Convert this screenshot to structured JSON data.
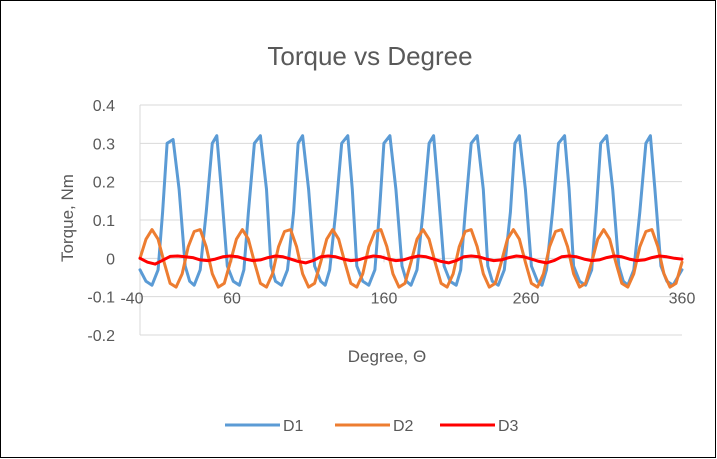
{
  "chart_data": {
    "type": "line",
    "title": "Torque vs Degree",
    "xlabel": "Degree, Θ",
    "ylabel": "Torque, Nm",
    "xlim": [
      -40,
      360
    ],
    "ylim": [
      -0.2,
      0.4
    ],
    "x_ticks": [
      -40,
      60,
      160,
      260,
      360
    ],
    "x_tick_labels": [
      "-40",
      "60",
      "160",
      "260",
      "360"
    ],
    "y_ticks": [
      -0.2,
      -0.1,
      0,
      0.1,
      0.2,
      0.3,
      0.4
    ],
    "y_tick_labels": [
      "-0.2",
      "-0.1",
      "0",
      "0.1",
      "0.2",
      "0.3",
      "0.4"
    ],
    "grid": "horizontal",
    "legend": "bottom",
    "series": [
      {
        "name": "D1",
        "color": "#5B9BD5",
        "x": [
          0,
          4,
          8,
          12,
          15,
          18,
          22,
          26,
          30,
          33,
          36,
          40,
          44,
          48,
          51,
          54,
          58,
          62,
          66,
          69,
          72,
          76,
          80,
          84,
          87,
          90,
          94,
          98,
          102,
          105,
          108,
          112,
          116,
          120,
          123,
          126,
          130,
          134,
          138,
          141,
          144,
          148,
          152,
          156,
          159,
          162,
          166,
          170,
          174,
          177,
          180,
          184,
          188,
          192,
          195,
          198,
          202,
          206,
          210,
          213,
          216,
          220,
          224,
          228,
          231,
          234,
          238,
          242,
          246,
          249,
          252,
          256,
          260,
          264,
          267,
          270,
          274,
          278,
          282,
          285,
          288,
          292,
          296,
          300,
          303,
          306,
          310,
          314,
          318,
          321,
          324,
          328,
          332,
          336,
          339,
          342,
          346,
          350,
          354,
          357,
          360
        ],
        "y": [
          -0.03,
          -0.06,
          -0.07,
          -0.03,
          0.12,
          0.3,
          0.31,
          0.18,
          -0.02,
          -0.06,
          -0.07,
          -0.03,
          0.12,
          0.3,
          0.32,
          0.18,
          -0.02,
          -0.06,
          -0.07,
          -0.03,
          0.12,
          0.3,
          0.32,
          0.18,
          -0.02,
          -0.06,
          -0.07,
          -0.03,
          0.12,
          0.3,
          0.32,
          0.18,
          -0.02,
          -0.06,
          -0.07,
          -0.03,
          0.12,
          0.3,
          0.32,
          0.18,
          -0.02,
          -0.06,
          -0.07,
          -0.03,
          0.12,
          0.3,
          0.32,
          0.18,
          -0.02,
          -0.06,
          -0.07,
          -0.03,
          0.12,
          0.3,
          0.32,
          0.18,
          -0.02,
          -0.06,
          -0.07,
          -0.03,
          0.12,
          0.3,
          0.32,
          0.18,
          -0.02,
          -0.06,
          -0.07,
          -0.03,
          0.12,
          0.3,
          0.32,
          0.18,
          -0.02,
          -0.06,
          -0.07,
          -0.03,
          0.12,
          0.3,
          0.32,
          0.18,
          -0.02,
          -0.06,
          -0.07,
          -0.03,
          0.12,
          0.3,
          0.32,
          0.18,
          -0.02,
          -0.06,
          -0.07,
          -0.03,
          0.12,
          0.3,
          0.32,
          0.18,
          -0.02,
          -0.06,
          -0.07,
          -0.05,
          -0.03
        ]
      },
      {
        "name": "D2",
        "color": "#ED7D31",
        "x": [
          0,
          4,
          8,
          12,
          16,
          20,
          24,
          28,
          32,
          36,
          40,
          44,
          48,
          52,
          56,
          60,
          64,
          68,
          72,
          76,
          80,
          84,
          88,
          92,
          96,
          100,
          104,
          108,
          112,
          116,
          120,
          124,
          128,
          132,
          136,
          140,
          144,
          148,
          152,
          156,
          160,
          164,
          168,
          172,
          176,
          180,
          184,
          188,
          192,
          196,
          200,
          204,
          208,
          212,
          216,
          220,
          224,
          228,
          232,
          236,
          240,
          244,
          248,
          252,
          256,
          260,
          264,
          268,
          272,
          276,
          280,
          284,
          288,
          292,
          296,
          300,
          304,
          308,
          312,
          316,
          320,
          324,
          328,
          332,
          336,
          340,
          344,
          348,
          352,
          356,
          360
        ],
        "y": [
          0,
          0.05,
          0.075,
          0.05,
          -0.01,
          -0.065,
          -0.075,
          -0.04,
          0.03,
          0.07,
          0.075,
          0.03,
          -0.04,
          -0.075,
          -0.065,
          -0.01,
          0.05,
          0.075,
          0.05,
          -0.01,
          -0.065,
          -0.075,
          -0.04,
          0.03,
          0.07,
          0.075,
          0.03,
          -0.04,
          -0.075,
          -0.065,
          -0.01,
          0.05,
          0.075,
          0.05,
          -0.01,
          -0.065,
          -0.075,
          -0.04,
          0.03,
          0.07,
          0.075,
          0.03,
          -0.04,
          -0.075,
          -0.065,
          -0.01,
          0.05,
          0.075,
          0.05,
          -0.01,
          -0.065,
          -0.075,
          -0.04,
          0.03,
          0.07,
          0.075,
          0.03,
          -0.04,
          -0.075,
          -0.065,
          -0.01,
          0.05,
          0.075,
          0.05,
          -0.01,
          -0.065,
          -0.075,
          -0.04,
          0.03,
          0.07,
          0.075,
          0.03,
          -0.04,
          -0.075,
          -0.065,
          -0.01,
          0.05,
          0.075,
          0.05,
          -0.01,
          -0.065,
          -0.075,
          -0.04,
          0.03,
          0.07,
          0.075,
          0.03,
          -0.04,
          -0.075,
          -0.065,
          -0.01
        ]
      },
      {
        "name": "D3",
        "color": "#FF0000",
        "x": [
          0,
          5,
          10,
          15,
          20,
          25,
          30,
          35,
          40,
          45,
          50,
          55,
          60,
          65,
          70,
          75,
          80,
          85,
          90,
          95,
          100,
          105,
          110,
          115,
          120,
          125,
          130,
          135,
          140,
          145,
          150,
          155,
          160,
          165,
          170,
          175,
          180,
          185,
          190,
          195,
          200,
          205,
          210,
          215,
          220,
          225,
          230,
          235,
          240,
          245,
          250,
          255,
          260,
          265,
          270,
          275,
          280,
          285,
          290,
          295,
          300,
          305,
          310,
          315,
          320,
          325,
          330,
          335,
          340,
          345,
          350,
          355,
          360
        ],
        "y": [
          0,
          -0.01,
          -0.015,
          -0.005,
          0.005,
          0.006,
          0.004,
          0.002,
          -0.004,
          -0.006,
          -0.002,
          0.004,
          0.006,
          0.004,
          -0.002,
          -0.006,
          -0.004,
          0.002,
          0.006,
          0.004,
          -0.002,
          -0.008,
          -0.012,
          -0.006,
          0.004,
          0.006,
          0.004,
          -0.002,
          -0.006,
          -0.004,
          0.002,
          0.006,
          0.004,
          -0.002,
          -0.006,
          -0.004,
          0.002,
          0.006,
          0.004,
          -0.002,
          -0.008,
          -0.012,
          -0.006,
          0.004,
          0.006,
          0.004,
          -0.002,
          -0.006,
          -0.004,
          0.002,
          0.006,
          0.004,
          -0.002,
          -0.008,
          -0.012,
          -0.006,
          0.004,
          0.006,
          0.004,
          -0.002,
          -0.006,
          -0.004,
          0.002,
          0.006,
          0.004,
          -0.002,
          -0.006,
          -0.004,
          0.002,
          0.006,
          0.004,
          0.0,
          -0.002
        ]
      }
    ]
  }
}
